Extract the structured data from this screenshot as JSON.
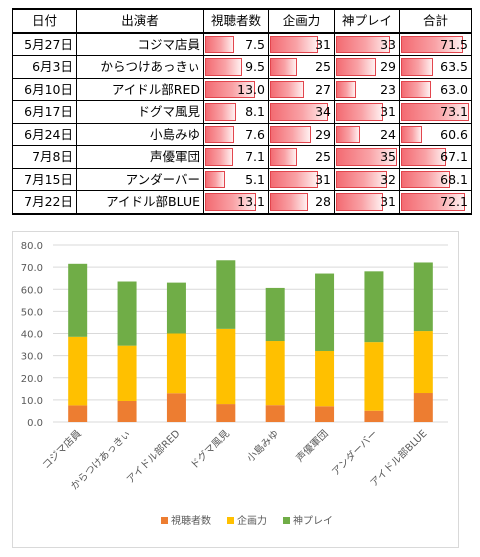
{
  "table": {
    "headers": [
      "日付",
      "出演者",
      "視聴者数",
      "企画力",
      "神プレイ",
      "合計"
    ],
    "rows": [
      {
        "date": "5月27日",
        "name": "コジマ店員",
        "viewers": "7.5",
        "planning": "31",
        "play": "33",
        "total": "71.5"
      },
      {
        "date": "6月3日",
        "name": "からつけあっきぃ",
        "viewers": "9.5",
        "planning": "25",
        "play": "29",
        "total": "63.5"
      },
      {
        "date": "6月10日",
        "name": "アイドル部RED",
        "viewers": "13.0",
        "planning": "27",
        "play": "23",
        "total": "63.0"
      },
      {
        "date": "6月17日",
        "name": "ドグマ風見",
        "viewers": "8.1",
        "planning": "34",
        "play": "31",
        "total": "73.1"
      },
      {
        "date": "6月24日",
        "name": "小島みゆ",
        "viewers": "7.6",
        "planning": "29",
        "play": "24",
        "total": "60.6"
      },
      {
        "date": "7月8日",
        "name": "声優軍団",
        "viewers": "7.1",
        "planning": "25",
        "play": "35",
        "total": "67.1"
      },
      {
        "date": "7月15日",
        "name": "アンダーバー",
        "viewers": "5.1",
        "planning": "31",
        "play": "32",
        "total": "68.1"
      },
      {
        "date": "7月22日",
        "name": "アイドル部BLUE",
        "viewers": "13.1",
        "planning": "28",
        "play": "31",
        "total": "72.1"
      }
    ],
    "bar_color": "#f36b72"
  },
  "chart_data": {
    "type": "bar",
    "stacked": true,
    "categories": [
      "コジマ店員",
      "からつけあっきぃ",
      "アイドル部RED",
      "ドグマ風見",
      "小島みゆ",
      "声優軍団",
      "アンダーバー",
      "アイドル部BLUE"
    ],
    "series": [
      {
        "name": "視聴者数",
        "color": "#ed7d31",
        "values": [
          7.5,
          9.5,
          13.0,
          8.1,
          7.6,
          7.1,
          5.1,
          13.1
        ]
      },
      {
        "name": "企画力",
        "color": "#ffc000",
        "values": [
          31,
          25,
          27,
          34,
          29,
          25,
          31,
          28
        ]
      },
      {
        "name": "神プレイ",
        "color": "#70ad47",
        "values": [
          33,
          29,
          23,
          31,
          24,
          35,
          32,
          31
        ]
      }
    ],
    "yticks": [
      "0.0",
      "10.0",
      "20.0",
      "30.0",
      "40.0",
      "50.0",
      "60.0",
      "70.0",
      "80.0"
    ],
    "ylim": [
      0,
      80
    ],
    "grid": true,
    "legend": "bottom"
  }
}
